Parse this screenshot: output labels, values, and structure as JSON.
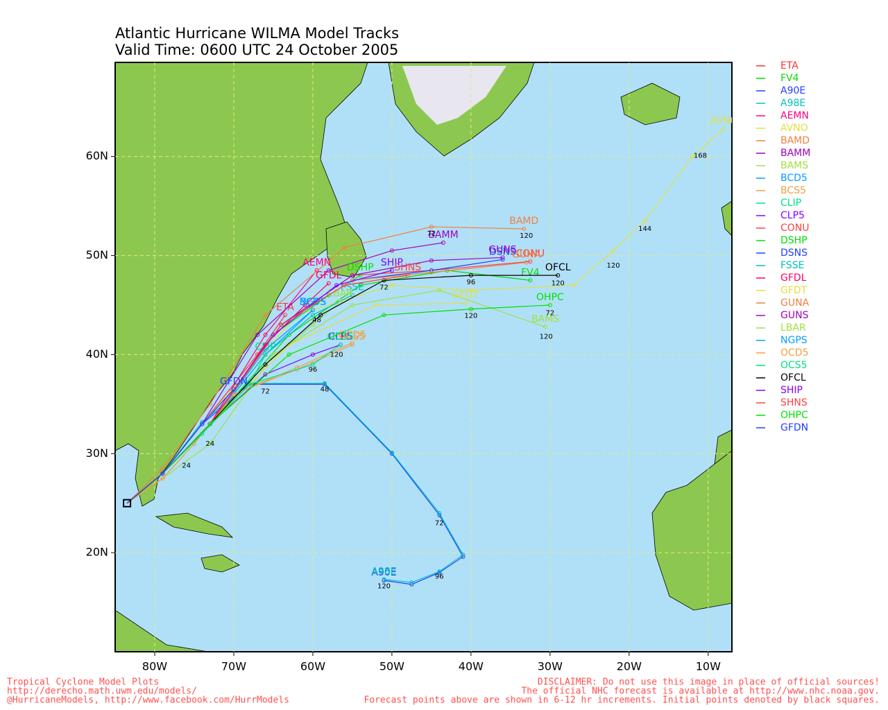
{
  "map": {
    "title": "Atlantic Hurricane WILMA Model Tracks",
    "subtitle": "Valid Time: 0600 UTC 24 October 2005",
    "lon_range": [
      -85,
      -7
    ],
    "lat_range": [
      10,
      69.5
    ],
    "lon_ticks": [
      {
        "value": -80,
        "label": "80W"
      },
      {
        "value": -70,
        "label": "70W"
      },
      {
        "value": -60,
        "label": "60W"
      },
      {
        "value": -50,
        "label": "50W"
      },
      {
        "value": -40,
        "label": "40W"
      },
      {
        "value": -30,
        "label": "30W"
      },
      {
        "value": -20,
        "label": "20W"
      },
      {
        "value": -10,
        "label": "10W"
      }
    ],
    "lat_ticks": [
      {
        "value": 20,
        "label": "20N"
      },
      {
        "value": 30,
        "label": "30N"
      },
      {
        "value": 40,
        "label": "40N"
      },
      {
        "value": 50,
        "label": "50N"
      },
      {
        "value": 60,
        "label": "60N"
      }
    ],
    "grid": true,
    "tracks": [
      {
        "name": "ETA",
        "color": "#ff3030",
        "lon": [
          -83.5,
          -79,
          -74,
          -67,
          -63.5
        ],
        "lat": [
          25,
          28,
          33,
          40,
          44
        ]
      },
      {
        "name": "FV4",
        "color": "#00dd00",
        "lon": [
          -83.5,
          -79,
          -73,
          -63,
          -54,
          -43,
          -32.5
        ],
        "lat": [
          25,
          28,
          33,
          42,
          47,
          48.5,
          47.5
        ]
      },
      {
        "name": "A90E",
        "color": "#2040ff",
        "lon": [
          -83.5,
          -79,
          -74,
          -68,
          -58.5,
          -50,
          -44,
          -41,
          -44,
          -47.5,
          -51
        ],
        "lat": [
          25,
          28,
          33,
          37,
          37,
          30,
          23.8,
          19.6,
          18,
          16.8,
          17.2
        ]
      },
      {
        "name": "A98E",
        "color": "#00c0c0",
        "lon": [
          -83.5,
          -79,
          -74,
          -68,
          -58.5,
          -50,
          -44,
          -41,
          -44,
          -47.5,
          -51
        ],
        "lat": [
          25,
          28,
          33.2,
          37.1,
          37.1,
          30.1,
          24,
          19.8,
          18.1,
          17,
          17.3
        ]
      },
      {
        "name": "AEMN",
        "color": "#ff0080",
        "lon": [
          -83.5,
          -79,
          -73,
          -66,
          -59.5
        ],
        "lat": [
          25,
          28,
          33,
          42,
          48.5
        ]
      },
      {
        "name": "AVNO",
        "color": "#e0e040",
        "lon": [
          -83.5,
          -79,
          -74,
          -62,
          -50,
          -40,
          -27,
          -22,
          -18,
          -12,
          -8
        ],
        "lat": [
          25,
          28,
          33,
          44,
          47,
          46.5,
          47,
          50.5,
          53.5,
          60,
          62.8
        ]
      },
      {
        "name": "BAMD",
        "color": "#f08040",
        "lon": [
          -83.5,
          -79,
          -73,
          -66,
          -56,
          -45,
          -33.3
        ],
        "lat": [
          25,
          28.5,
          35,
          44,
          50.8,
          52.9,
          52.7
        ]
      },
      {
        "name": "BAMM",
        "color": "#a000c0",
        "lon": [
          -83.5,
          -79,
          -74,
          -67,
          -58,
          -50,
          -43.5
        ],
        "lat": [
          25,
          28,
          33,
          42,
          48.5,
          50.5,
          51.3
        ]
      },
      {
        "name": "BAMS",
        "color": "#a0e040",
        "lon": [
          -83.5,
          -79,
          -73,
          -65,
          -55,
          -44,
          -30.6
        ],
        "lat": [
          25,
          27.5,
          31,
          40,
          45,
          46.5,
          42.8
        ]
      },
      {
        "name": "BCD5",
        "color": "#00a0ff",
        "lon": [
          -83.5,
          -79,
          -73,
          -66,
          -60
        ],
        "lat": [
          25,
          28,
          33,
          40,
          44.5
        ]
      },
      {
        "name": "BCS5",
        "color": "#f0a040",
        "lon": [
          -83.5,
          -79,
          -75,
          -70,
          -62,
          -55
        ],
        "lat": [
          25,
          27.5,
          31,
          36,
          38.5,
          41
        ]
      },
      {
        "name": "CLIP",
        "color": "#00e080",
        "lon": [
          -83.5,
          -79,
          -73,
          -68,
          -66
        ],
        "lat": [
          25,
          28,
          33,
          37,
          40
        ]
      },
      {
        "name": "CLP5",
        "color": "#8000ff",
        "lon": [
          -83.5,
          -79,
          -73,
          -66,
          -60,
          -56.5
        ],
        "lat": [
          25,
          28,
          33,
          38,
          40,
          41
        ]
      },
      {
        "name": "CONU",
        "color": "#ff4040",
        "lon": [
          -83.5,
          -79,
          -73,
          -64,
          -55,
          -45,
          -32.5
        ],
        "lat": [
          25,
          28,
          33,
          43,
          48,
          48.5,
          49.4
        ]
      },
      {
        "name": "DSHP",
        "color": "#00e000",
        "lon": [
          -83.5,
          -79,
          -73,
          -65,
          -58,
          -54
        ],
        "lat": [
          25,
          28,
          33,
          42,
          46,
          48
        ]
      },
      {
        "name": "DSNS",
        "color": "#2040ff",
        "lon": [
          -83.5,
          -79,
          -73,
          -64,
          -55,
          -45,
          -36
        ],
        "lat": [
          25,
          28,
          33,
          43,
          47.5,
          48.5,
          49.6
        ]
      },
      {
        "name": "FSSE",
        "color": "#00c0c0",
        "lon": [
          -83.5,
          -79,
          -73,
          -66,
          -60,
          -55
        ],
        "lat": [
          25,
          28,
          33,
          40,
          44,
          46
        ]
      },
      {
        "name": "GFDL",
        "color": "#ff0060",
        "lon": [
          -83.5,
          -79,
          -73,
          -66,
          -61,
          -58
        ],
        "lat": [
          25,
          28,
          33,
          41,
          45,
          47.2
        ]
      },
      {
        "name": "GFDT",
        "color": "#e0e040",
        "lon": [
          -83.5,
          -79,
          -73,
          -63,
          -52,
          -40.7
        ],
        "lat": [
          25,
          28,
          33,
          41,
          45,
          45.2
        ]
      },
      {
        "name": "GUNA",
        "color": "#f08040",
        "lon": [
          -83.5,
          -79,
          -73,
          -64,
          -55,
          -45,
          -33
        ],
        "lat": [
          25,
          28,
          33,
          43,
          47.5,
          48.3,
          49.3
        ]
      },
      {
        "name": "GUNS",
        "color": "#a000c0",
        "lon": [
          -83.5,
          -79,
          -73,
          -64,
          -55,
          -45,
          -36
        ],
        "lat": [
          25,
          28,
          33,
          43,
          48,
          49.5,
          49.8
        ]
      },
      {
        "name": "LBAR",
        "color": "#a0e040",
        "lon": [
          -83.5,
          -79,
          -73,
          -66,
          -60,
          -56.5
        ],
        "lat": [
          25,
          28,
          33,
          39,
          43,
          45.4
        ]
      },
      {
        "name": "NGPS",
        "color": "#00a0ff",
        "lon": [
          -83.5,
          -79,
          -73,
          -66,
          -60
        ],
        "lat": [
          25,
          28,
          33,
          40.5,
          44.5
        ]
      },
      {
        "name": "OCD5",
        "color": "#f0a040",
        "lon": [
          -83.5,
          -79,
          -75,
          -70,
          -62,
          -55
        ],
        "lat": [
          25,
          27.5,
          31,
          36,
          38.7,
          41.2
        ]
      },
      {
        "name": "OCS5",
        "color": "#00e080",
        "lon": [
          -83.5,
          -79,
          -74,
          -68,
          -60,
          -56.5
        ],
        "lat": [
          25,
          28,
          32,
          37,
          39,
          41
        ]
      },
      {
        "name": "OFCL",
        "color": "#000000",
        "lon": [
          -83.5,
          -79,
          -73,
          -66,
          -59,
          -51,
          -40,
          -29
        ],
        "lat": [
          25,
          28,
          33,
          39,
          44,
          47.5,
          48,
          48
        ]
      },
      {
        "name": "SHIP",
        "color": "#8000ff",
        "lon": [
          -83.5,
          -79,
          -73,
          -65,
          -57,
          -50
        ],
        "lat": [
          25,
          28,
          33,
          42,
          47,
          48.5
        ]
      },
      {
        "name": "SHNS",
        "color": "#ff4040",
        "lon": [
          -83.5,
          -79,
          -73,
          -64,
          -56,
          -48
        ],
        "lat": [
          25,
          28,
          33,
          43,
          47,
          48
        ]
      },
      {
        "name": "OHPC",
        "color": "#00e000",
        "lon": [
          -83.5,
          -79,
          -73,
          -63,
          -51,
          -40,
          -30
        ],
        "lat": [
          25,
          28,
          33,
          40,
          44,
          44.6,
          45
        ]
      },
      {
        "name": "GFDN",
        "color": "#2040ff",
        "lon": [
          -83.5,
          -79,
          -74,
          -70
        ],
        "lat": [
          25,
          28,
          33,
          36.5
        ]
      }
    ],
    "hour_labels": [
      {
        "text": "24",
        "lon": -73,
        "lat": 31
      },
      {
        "text": "48",
        "lon": -58.5,
        "lat": 36.5
      },
      {
        "text": "72",
        "lon": -44,
        "lat": 23
      },
      {
        "text": "96",
        "lon": -44,
        "lat": 17.6
      },
      {
        "text": "120",
        "lon": -51,
        "lat": 16.6
      },
      {
        "text": "72",
        "lon": -45,
        "lat": 52.2
      },
      {
        "text": "120",
        "lon": -33,
        "lat": 52
      },
      {
        "text": "120",
        "lon": -22,
        "lat": 49
      },
      {
        "text": "144",
        "lon": -18,
        "lat": 52.7
      },
      {
        "text": "168",
        "lon": -11,
        "lat": 60.1
      },
      {
        "text": "96",
        "lon": -40,
        "lat": 47.3
      },
      {
        "text": "120",
        "lon": -29,
        "lat": 47.2
      },
      {
        "text": "72",
        "lon": -51,
        "lat": 46.8
      },
      {
        "text": "48",
        "lon": -59.5,
        "lat": 43.5
      },
      {
        "text": "120",
        "lon": -30.5,
        "lat": 41.8
      },
      {
        "text": "72",
        "lon": -30,
        "lat": 44.2
      },
      {
        "text": "120",
        "lon": -40,
        "lat": 43.9
      },
      {
        "text": "96",
        "lon": -60,
        "lat": 38.5
      },
      {
        "text": "120",
        "lon": -57,
        "lat": 40
      },
      {
        "text": "72",
        "lon": -66,
        "lat": 36.3
      },
      {
        "text": "24",
        "lon": -76,
        "lat": 28.8
      }
    ],
    "footer_left": [
      "Tropical Cyclone Model Plots",
      "http://derecho.math.uwm.edu/models/",
      "@HurricaneModels, http://www.facebook.com/HurrModels"
    ],
    "footer_right": [
      "DISCLAIMER: Do not use this image in place of official sources!",
      "The official NHC forecast is available at http://www.nhc.noaa.gov.",
      "Forecast points above are shown in 6-12 hr increments. Initial points denoted by black squares."
    ]
  }
}
